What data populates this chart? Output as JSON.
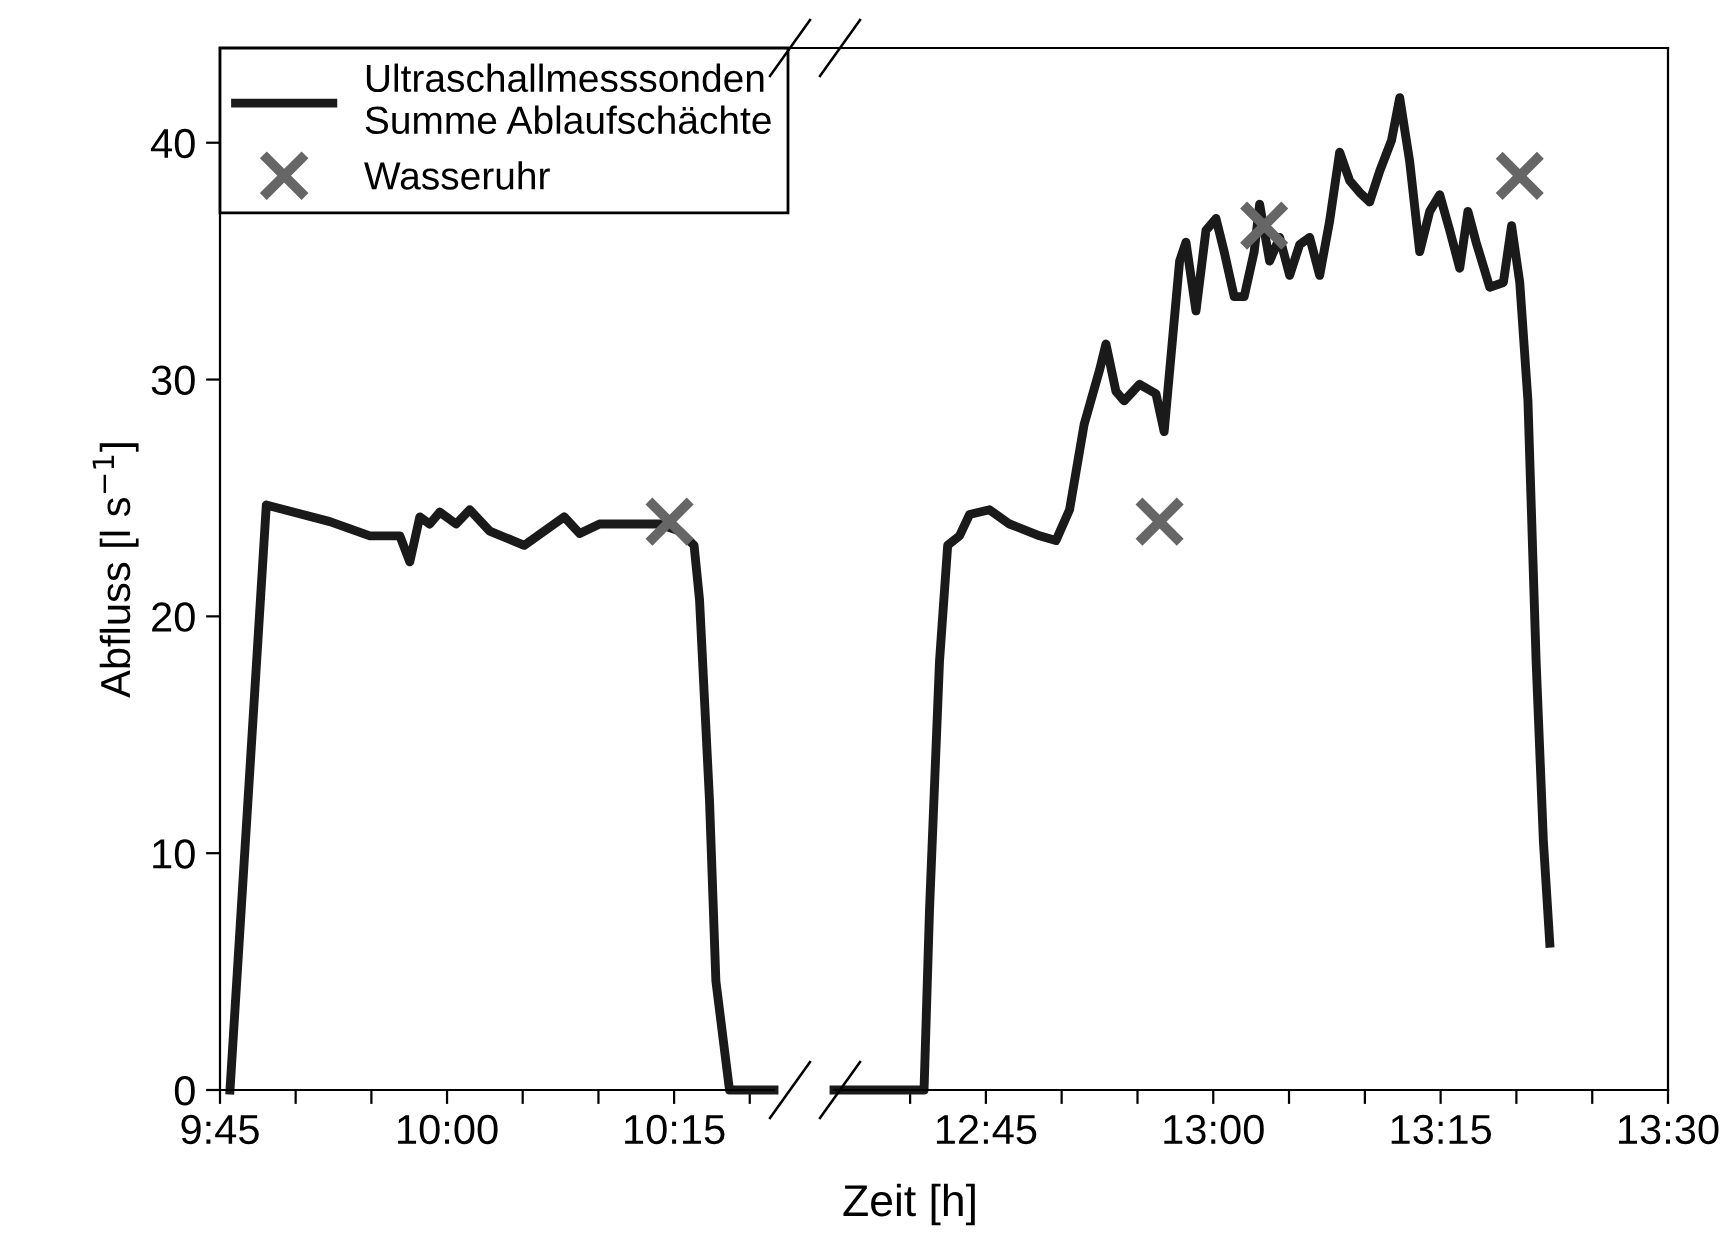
{
  "chart_data": [
    {
      "type": "line",
      "ylabel": "Abfluss [l s$^{−1}$]",
      "xlabel": "Zeit [h]",
      "xlim": [
        9.75,
        10.36
      ],
      "ylim": [
        0,
        44
      ],
      "xticks": [
        {
          "value": 9.75,
          "label": "9:45"
        },
        {
          "value": 9.8333,
          "label": null
        },
        {
          "value": 9.9167,
          "label": null
        },
        {
          "value": 10.0,
          "label": "10:00"
        },
        {
          "value": 10.0833,
          "label": null
        },
        {
          "value": 10.1667,
          "label": null
        },
        {
          "value": 10.25,
          "label": "10:15"
        },
        {
          "value": 10.3333,
          "label": null
        }
      ],
      "yticks": [
        0,
        10,
        20,
        30,
        40
      ],
      "legend": "top left",
      "grid": false,
      "series": [
        {
          "name": "Ultraschallmesssonden\nSumme Ablaufschächte",
          "color": "#1a1a1a",
          "marker": "none",
          "line_style": "solid",
          "x": [
            9.761,
            9.801,
            9.871,
            9.915,
            9.948,
            9.959,
            9.97,
            9.981,
            9.992,
            10.01,
            10.025,
            10.047,
            10.085,
            10.129,
            10.146,
            10.168,
            10.234,
            10.256,
            10.272,
            10.278,
            10.289,
            10.296,
            10.311,
            10.36
          ],
          "values": [
            0,
            24.7,
            24.0,
            23.4,
            23.4,
            22.3,
            24.2,
            23.9,
            24.4,
            23.9,
            24.5,
            23.6,
            23.0,
            24.2,
            23.5,
            23.9,
            23.9,
            23.6,
            23.0,
            20.7,
            12.2,
            4.6,
            0,
            0
          ]
        },
        {
          "name": "Wasseruhr",
          "type": "scatter",
          "color": "#666666",
          "marker": "cross",
          "x": [
            10.245
          ],
          "values": [
            24.0
          ]
        }
      ]
    },
    {
      "type": "line",
      "xlim": [
        12.583,
        13.5
      ],
      "ylim": [
        0,
        44
      ],
      "tick_labels": "x",
      "grid": false,
      "xticks": [
        {
          "value": 12.6667,
          "label": null
        },
        {
          "value": 12.75,
          "label": "12:45"
        },
        {
          "value": 12.8333,
          "label": null
        },
        {
          "value": 12.9167,
          "label": null
        },
        {
          "value": 13.0,
          "label": "13:00"
        },
        {
          "value": 13.0833,
          "label": null
        },
        {
          "value": 13.1667,
          "label": null
        },
        {
          "value": 13.25,
          "label": "13:15"
        },
        {
          "value": 13.3333,
          "label": null
        },
        {
          "value": 13.4167,
          "label": null
        },
        {
          "value": 13.5,
          "label": "13:30"
        }
      ],
      "series": [
        {
          "color": "#1a1a1a",
          "marker": "none",
          "line_style": "solid",
          "x": [
            12.583,
            12.682,
            12.688,
            12.699,
            12.708,
            12.721,
            12.732,
            12.754,
            12.776,
            12.809,
            12.827,
            12.842,
            12.858,
            12.875,
            12.882,
            12.893,
            12.902,
            12.919,
            12.937,
            12.946,
            12.95,
            12.963,
            12.97,
            12.981,
            12.992,
            13.003,
            13.012,
            13.023,
            13.034,
            13.045,
            13.051,
            13.062,
            13.073,
            13.084,
            13.095,
            13.106,
            13.117,
            13.128,
            13.139,
            13.15,
            13.161,
            13.172,
            13.183,
            13.196,
            13.205,
            13.216,
            13.227,
            13.238,
            13.249,
            13.26,
            13.271,
            13.28,
            13.289,
            13.304,
            13.319,
            13.328,
            13.337,
            13.346,
            13.355,
            13.363,
            13.37
          ],
          "values": [
            0,
            0,
            7.6,
            18.1,
            23.0,
            23.4,
            24.3,
            24.5,
            23.9,
            23.4,
            23.2,
            24.5,
            28.1,
            30.4,
            31.5,
            29.5,
            29.1,
            29.8,
            29.4,
            27.8,
            29.5,
            35.0,
            35.8,
            32.9,
            36.3,
            36.8,
            35.4,
            33.5,
            33.5,
            35.4,
            37.4,
            35.0,
            36.0,
            34.4,
            35.7,
            36.0,
            34.4,
            36.7,
            39.6,
            38.4,
            37.9,
            37.5,
            38.8,
            40.1,
            41.9,
            39.2,
            35.4,
            37.1,
            37.8,
            36.3,
            34.7,
            37.1,
            35.8,
            33.9,
            34.1,
            36.5,
            34.1,
            29.1,
            18.1,
            10.5,
            6.2
          ]
        },
        {
          "type": "scatter",
          "color": "#666666",
          "marker": "cross",
          "x": [
            12.941,
            13.056,
            13.337
          ],
          "values": [
            24.0,
            36.5,
            38.6
          ]
        }
      ]
    }
  ]
}
